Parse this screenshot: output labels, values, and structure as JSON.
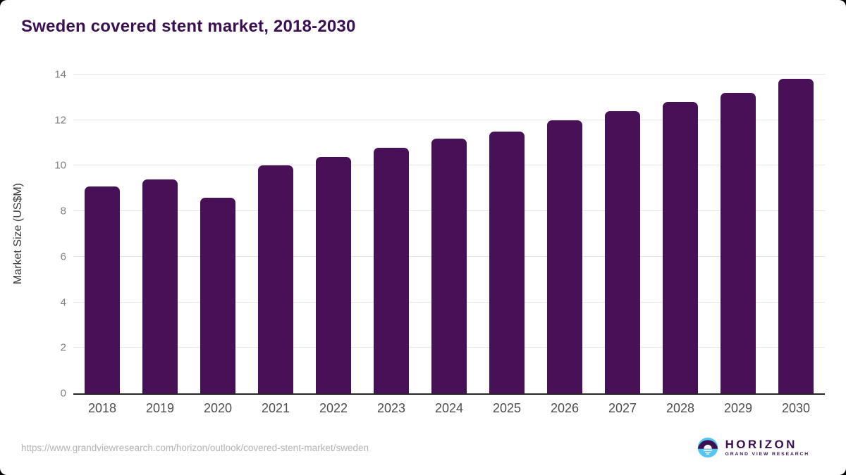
{
  "title": "Sweden covered stent market, 2018-2030",
  "chart_data": {
    "type": "bar",
    "title": "Sweden covered stent market, 2018-2030",
    "categories": [
      "2018",
      "2019",
      "2020",
      "2021",
      "2022",
      "2023",
      "2024",
      "2025",
      "2026",
      "2027",
      "2028",
      "2029",
      "2030"
    ],
    "values": [
      9.1,
      9.4,
      8.6,
      10.0,
      10.4,
      10.8,
      11.2,
      11.5,
      12.0,
      12.4,
      12.8,
      13.2,
      13.8
    ],
    "xlabel": "",
    "ylabel": "Market Size (US$M)",
    "ylim": [
      0,
      14
    ],
    "yticks": [
      0,
      2,
      4,
      6,
      8,
      10,
      12,
      14
    ],
    "grid": true,
    "legend": "none",
    "bar_color": "#481157"
  },
  "footer": {
    "source_url": "https://www.grandviewresearch.com/horizon/outlook/covered-stent-market/sweden",
    "logo_name": "HORIZON",
    "logo_subtitle": "GRAND VIEW RESEARCH"
  },
  "colors": {
    "title_text": "#3b1053",
    "bar": "#481157",
    "gridline": "#e5e5e5",
    "axis_line": "#262626",
    "y_tick_text": "#808080",
    "x_tick_text": "#4d4d4d",
    "y_axis_title_text": "#3a3a3a",
    "url_text": "#b3b3b3",
    "logo_purple": "#3b1053",
    "logo_blue": "#55c6f1"
  }
}
